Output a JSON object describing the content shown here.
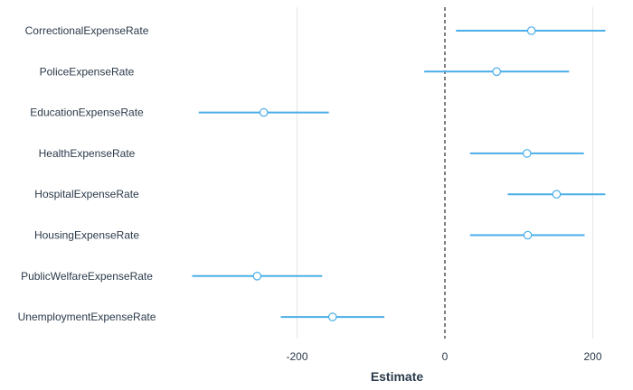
{
  "chart_data": {
    "type": "forest",
    "xlabel": "Estimate",
    "xlim": [
      -200,
      200
    ],
    "x_ticks": [
      -200,
      0,
      200
    ],
    "reference_line": 0,
    "grid": "vertical",
    "color": "#4aaee8",
    "categories": [
      "CorrectionalExpenseRate",
      "PoliceExpenseRate",
      "EducationExpenseRate",
      "HealthExpenseRate",
      "HospitalExpenseRate",
      "HousingExpenseRate",
      "PublicWelfareExpenseRate",
      "UnemploymentExpenseRate"
    ],
    "estimates": [
      117,
      70,
      -245,
      111,
      151,
      112,
      -254,
      -152
    ],
    "lower": [
      15,
      -28,
      -333,
      34,
      85,
      34,
      -342,
      -222
    ],
    "upper": [
      217,
      168,
      -157,
      188,
      217,
      189,
      -166,
      -82
    ]
  }
}
